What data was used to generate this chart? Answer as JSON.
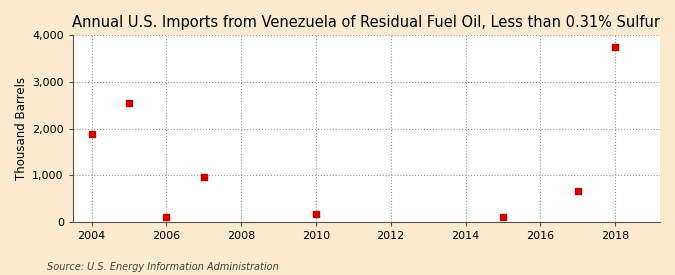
{
  "title": "Annual U.S. Imports from Venezuela of Residual Fuel Oil, Less than 0.31% Sulfur",
  "ylabel": "Thousand Barrels",
  "source": "Source: U.S. Energy Information Administration",
  "figure_bg_color": "#faebd0",
  "plot_bg_color": "#ffffff",
  "marker_color": "#cc0000",
  "x_data": [
    2004,
    2005,
    2006,
    2007,
    2010,
    2015,
    2017,
    2018
  ],
  "y_data": [
    1893,
    2556,
    107,
    952,
    175,
    107,
    651,
    3754
  ],
  "xlim": [
    2003.5,
    2019.2
  ],
  "ylim": [
    0,
    4000
  ],
  "xticks": [
    2004,
    2006,
    2008,
    2010,
    2012,
    2014,
    2016,
    2018
  ],
  "yticks": [
    0,
    1000,
    2000,
    3000,
    4000
  ],
  "title_fontsize": 10.5,
  "label_fontsize": 8.5,
  "tick_fontsize": 8,
  "source_fontsize": 7
}
